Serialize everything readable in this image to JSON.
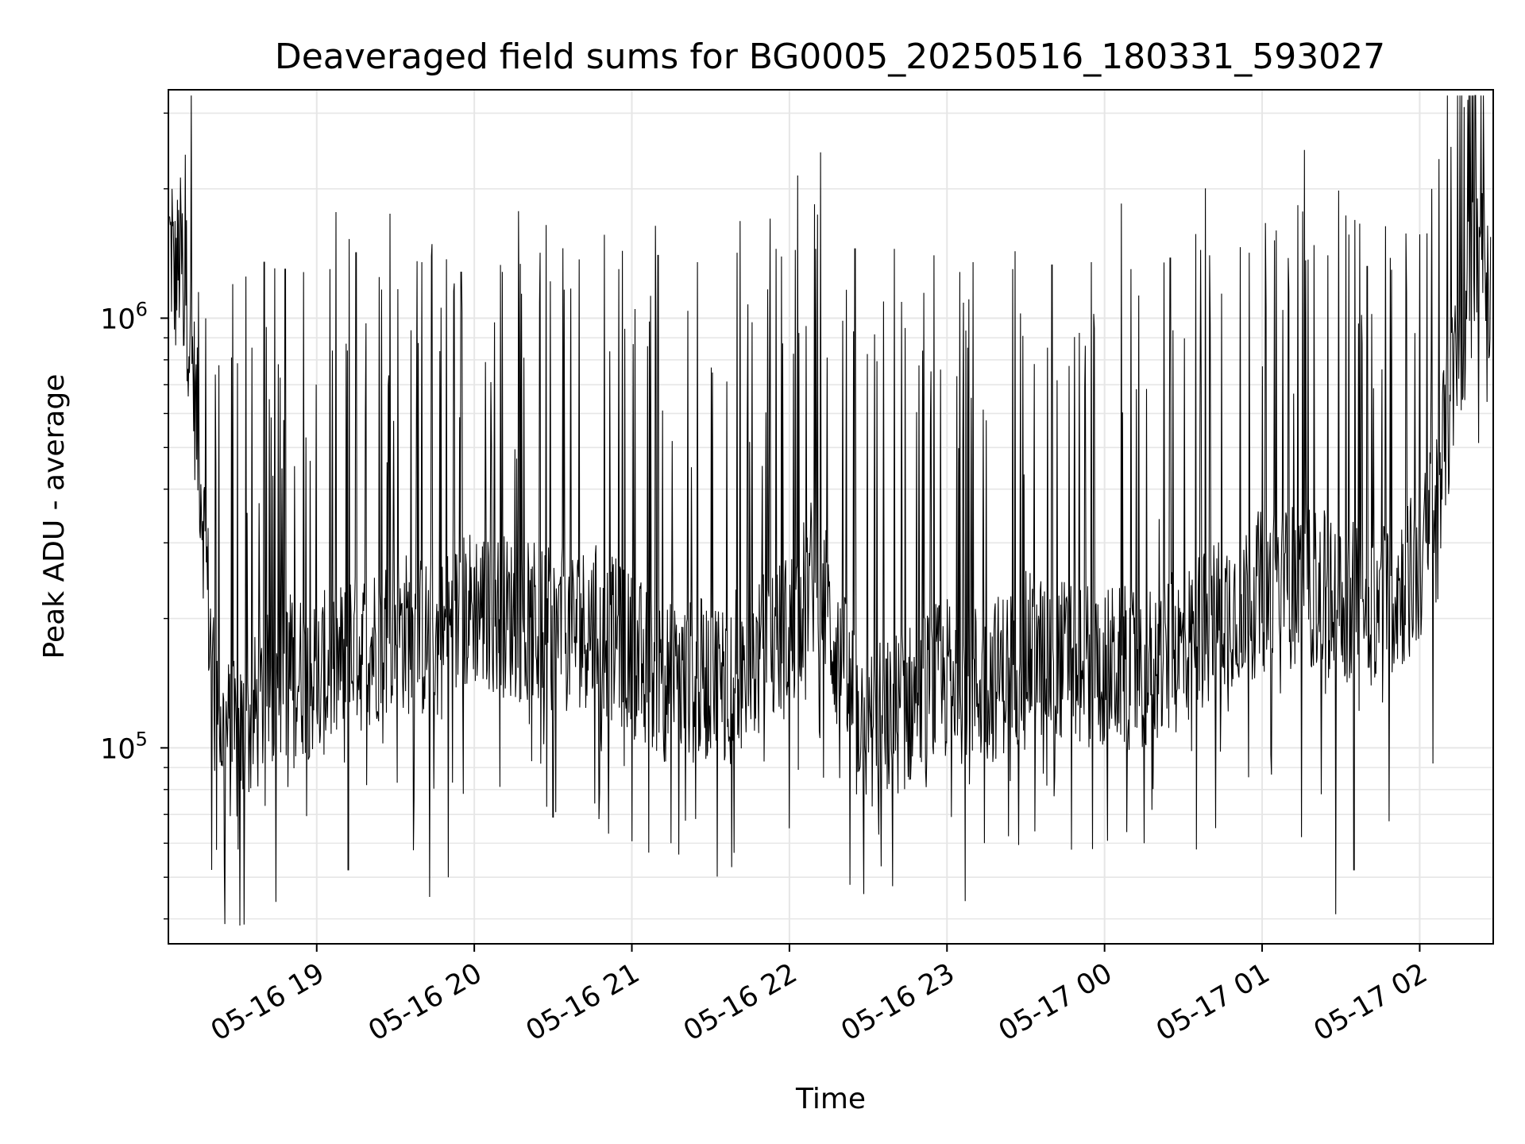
{
  "chart_data": {
    "type": "line",
    "title": "Deaveraged field sums for BG0005_20250516_180331_593027",
    "xlabel": "Time",
    "ylabel": "Peak ADU - average",
    "x_axis": {
      "kind": "datetime",
      "start": "2025-05-16T18:03:31",
      "end": "2025-05-17T02:28:00",
      "tick_values": [
        "2025-05-16T19:00",
        "2025-05-16T20:00",
        "2025-05-16T21:00",
        "2025-05-16T22:00",
        "2025-05-16T23:00",
        "2025-05-17T00:00",
        "2025-05-17T01:00",
        "2025-05-17T02:00"
      ],
      "tick_labels": [
        "05-16 19",
        "05-16 20",
        "05-16 21",
        "05-16 22",
        "05-16 23",
        "05-17 00",
        "05-17 01",
        "05-17 02"
      ]
    },
    "y_axis": {
      "scale": "log",
      "ylim": [
        35000,
        3400000
      ],
      "tick_labels": [
        {
          "value": 100000,
          "base": "10",
          "exp": "5"
        },
        {
          "value": 1000000,
          "base": "10",
          "exp": "6"
        }
      ]
    },
    "grid": true,
    "line_color": "#000000",
    "series": [
      {
        "points": [
          [
            "2025-05-16T18:04",
            1500000
          ],
          [
            "2025-05-16T18:06",
            1200000
          ],
          [
            "2025-05-16T18:08",
            1400000
          ],
          [
            "2025-05-16T18:10",
            1200000
          ],
          [
            "2025-05-16T18:12",
            900000
          ],
          [
            "2025-05-16T18:14",
            600000
          ],
          [
            "2025-05-16T18:16",
            420000
          ],
          [
            "2025-05-16T18:18",
            260000
          ],
          [
            "2025-05-16T18:20",
            160000
          ],
          [
            "2025-05-16T18:24",
            110000
          ],
          [
            "2025-05-16T18:30",
            100000
          ],
          [
            "2025-05-16T18:40",
            130000
          ],
          [
            "2025-05-16T18:50",
            150000
          ],
          [
            "2025-05-16T19:00",
            145000
          ],
          [
            "2025-05-16T19:15",
            165000
          ],
          [
            "2025-05-16T19:30",
            190000
          ],
          [
            "2025-05-16T19:45",
            175000
          ],
          [
            "2025-05-16T20:00",
            215000
          ],
          [
            "2025-05-16T20:15",
            200000
          ],
          [
            "2025-05-16T20:30",
            185000
          ],
          [
            "2025-05-16T20:45",
            195000
          ],
          [
            "2025-05-16T21:00",
            165000
          ],
          [
            "2025-05-16T21:15",
            140000
          ],
          [
            "2025-05-16T21:30",
            145000
          ],
          [
            "2025-05-16T21:45",
            155000
          ],
          [
            "2025-05-16T22:00",
            185000
          ],
          [
            "2025-05-16T22:10",
            260000
          ],
          [
            "2025-05-16T22:20",
            150000
          ],
          [
            "2025-05-16T22:30",
            110000
          ],
          [
            "2025-05-16T22:45",
            125000
          ],
          [
            "2025-05-16T23:00",
            145000
          ],
          [
            "2025-05-16T23:15",
            140000
          ],
          [
            "2025-05-16T23:30",
            165000
          ],
          [
            "2025-05-16T23:45",
            160000
          ],
          [
            "2025-05-17T00:00",
            155000
          ],
          [
            "2025-05-17T00:15",
            150000
          ],
          [
            "2025-05-17T00:30",
            170000
          ],
          [
            "2025-05-17T00:45",
            210000
          ],
          [
            "2025-05-17T01:00",
            230000
          ],
          [
            "2025-05-17T01:15",
            240000
          ],
          [
            "2025-05-17T01:30",
            220000
          ],
          [
            "2025-05-17T01:45",
            215000
          ],
          [
            "2025-05-17T02:00",
            260000
          ],
          [
            "2025-05-17T02:05",
            340000
          ],
          [
            "2025-05-17T02:10",
            550000
          ],
          [
            "2025-05-17T02:15",
            850000
          ],
          [
            "2025-05-17T02:20",
            1250000
          ],
          [
            "2025-05-17T02:25",
            1400000
          ],
          [
            "2025-05-17T02:27",
            1100000
          ]
        ],
        "spikes": [
          [
            "2025-05-16T18:05",
            2000000
          ],
          [
            "2025-05-16T18:10",
            2400000
          ],
          [
            "2025-05-16T18:15",
            1150000
          ],
          [
            "2025-05-16T18:28",
            1200000
          ],
          [
            "2025-05-16T18:33",
            1250000
          ],
          [
            "2025-05-16T18:40",
            1350000
          ],
          [
            "2025-05-16T18:48",
            1300000
          ],
          [
            "2025-05-16T18:55",
            1280000
          ],
          [
            "2025-05-16T19:05",
            1300000
          ],
          [
            "2025-05-16T19:15",
            1420000
          ],
          [
            "2025-05-16T19:28",
            1750000
          ],
          [
            "2025-05-16T19:40",
            1350000
          ],
          [
            "2025-05-16T19:55",
            1280000
          ],
          [
            "2025-05-16T20:10",
            1330000
          ],
          [
            "2025-05-16T20:25",
            1420000
          ],
          [
            "2025-05-16T20:40",
            1370000
          ],
          [
            "2025-05-16T20:55",
            1300000
          ],
          [
            "2025-05-16T21:10",
            1400000
          ],
          [
            "2025-05-16T21:25",
            1350000
          ],
          [
            "2025-05-16T21:40",
            1420000
          ],
          [
            "2025-05-16T21:55",
            1450000
          ],
          [
            "2025-05-16T22:10",
            1450000
          ],
          [
            "2025-05-16T22:25",
            1450000
          ],
          [
            "2025-05-16T22:40",
            1450000
          ],
          [
            "2025-05-16T22:55",
            1400000
          ],
          [
            "2025-05-16T23:10",
            1350000
          ],
          [
            "2025-05-16T23:25",
            1300000
          ],
          [
            "2025-05-16T23:40",
            1330000
          ],
          [
            "2025-05-16T23:55",
            1350000
          ],
          [
            "2025-05-17T00:10",
            1300000
          ],
          [
            "2025-05-17T00:25",
            1380000
          ],
          [
            "2025-05-17T00:40",
            1400000
          ],
          [
            "2025-05-17T00:55",
            1420000
          ],
          [
            "2025-05-17T01:10",
            1380000
          ],
          [
            "2025-05-17T01:25",
            1400000
          ],
          [
            "2025-05-17T01:40",
            1320000
          ],
          [
            "2025-05-17T01:55",
            1150000
          ],
          [
            "2025-05-17T02:17",
            3100000
          ],
          [
            "2025-05-17T02:22",
            1900000
          ]
        ],
        "dips": [
          [
            "2025-05-16T18:20",
            52000
          ],
          [
            "2025-05-16T18:30",
            58000
          ],
          [
            "2025-05-16T19:12",
            52000
          ],
          [
            "2025-05-16T19:43",
            45000
          ],
          [
            "2025-05-16T19:50",
            50000
          ],
          [
            "2025-05-16T20:30",
            69000
          ],
          [
            "2025-05-16T21:15",
            60000
          ],
          [
            "2025-05-16T22:00",
            65000
          ],
          [
            "2025-05-16T22:23",
            48000
          ],
          [
            "2025-05-16T22:35",
            53000
          ],
          [
            "2025-05-16T23:07",
            44000
          ],
          [
            "2025-05-17T00:15",
            60000
          ],
          [
            "2025-05-17T00:35",
            58000
          ],
          [
            "2025-05-17T01:15",
            62000
          ],
          [
            "2025-05-17T01:28",
            41000
          ],
          [
            "2025-05-17T01:35",
            52000
          ],
          [
            "2025-05-17T02:05",
            92000
          ]
        ]
      }
    ]
  }
}
